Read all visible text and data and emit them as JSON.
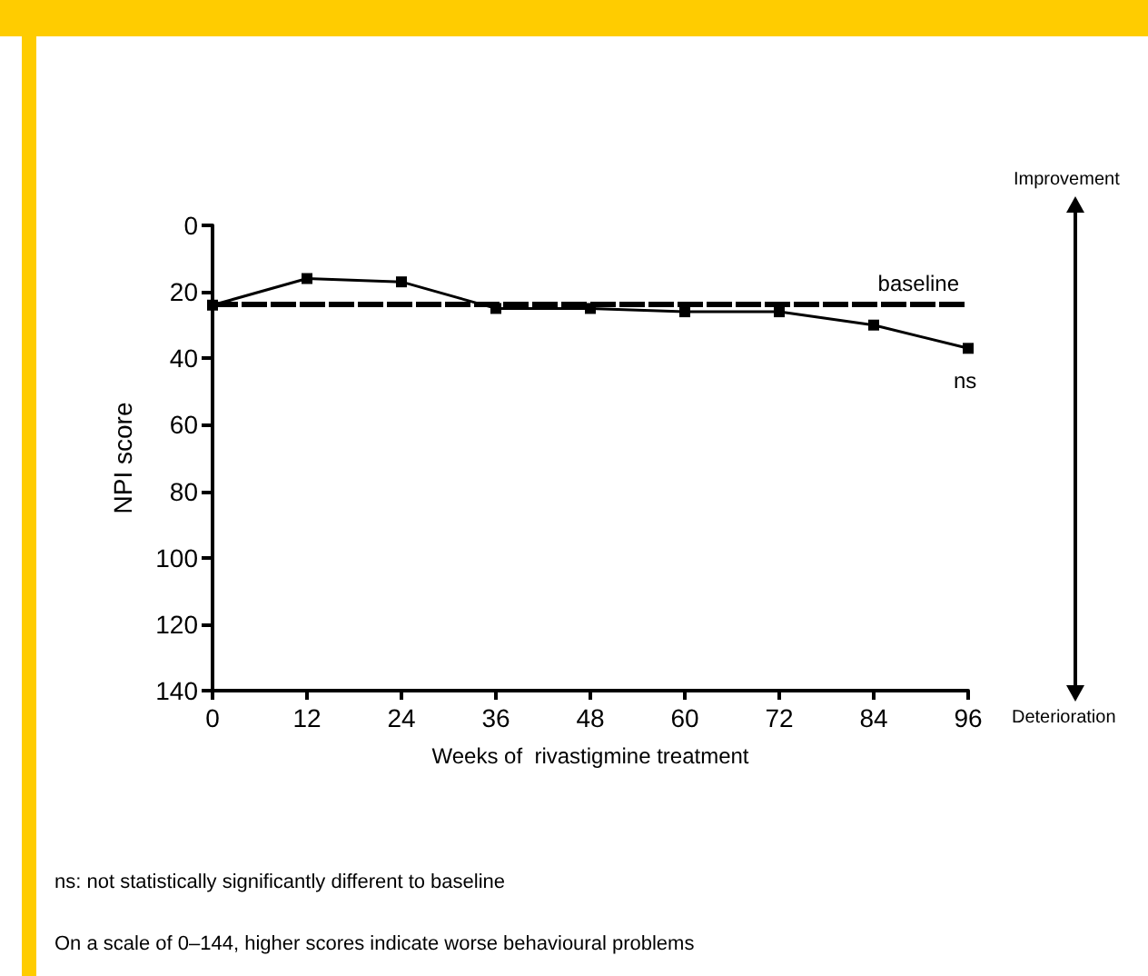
{
  "chart_data": {
    "type": "line",
    "xlabel": "Weeks of  rivastigmine treatment",
    "ylabel": "NPI score",
    "x": [
      0,
      12,
      24,
      36,
      48,
      60,
      72,
      84,
      96
    ],
    "series": [
      {
        "color": "#000000",
        "values": [
          24,
          16,
          17,
          25,
          25,
          26,
          26,
          30,
          37
        ]
      }
    ],
    "xlim": [
      0,
      96
    ],
    "xticks": [
      0,
      12,
      24,
      36,
      48,
      60,
      72,
      84,
      96
    ],
    "ylim": [
      140,
      0
    ],
    "yticks": [
      0,
      20,
      40,
      60,
      80,
      100,
      120,
      140
    ],
    "ref_lines": [
      {
        "axis": "y",
        "value": 23.5,
        "label": "baseline",
        "color": "#000000",
        "line_style": "dashed"
      }
    ],
    "marker": "square",
    "line_style": "solid",
    "grid": false,
    "annotations": [
      {
        "text": "ns",
        "x": 96,
        "y": 37
      },
      "Improvement",
      "Deterioration",
      "ns: not statistically significantly different to baseline",
      "On a scale of 0–144, higher scores indicate worse behavioural problems"
    ]
  }
}
